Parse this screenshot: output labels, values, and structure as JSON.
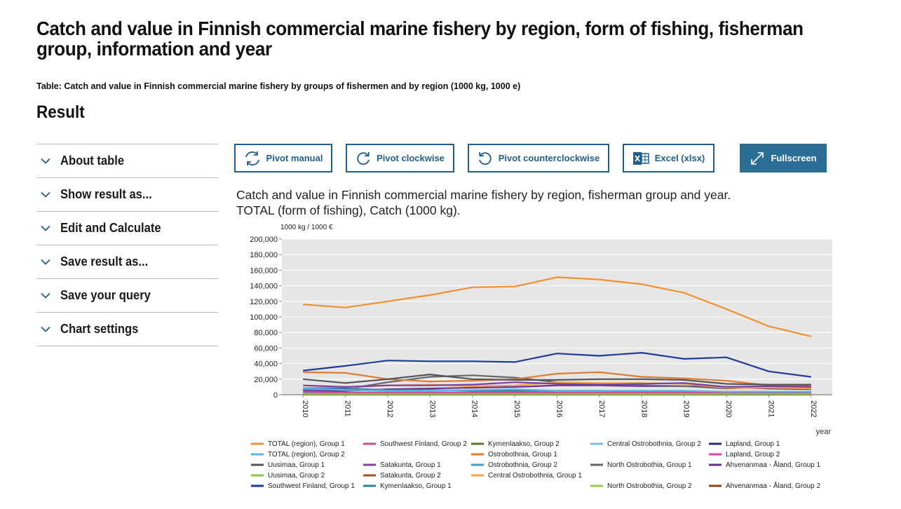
{
  "page": {
    "title": "Catch and value in Finnish commercial marine fishery by region, form of fishing, fisherman group, information and year",
    "subtitle": "Table: Catch and value in Finnish commercial marine fishery by groups of fishermen and by region (1000 kg, 1000 e)",
    "result_heading": "Result"
  },
  "sidebar": {
    "items": [
      {
        "label": "About table",
        "icon": "chevron-down-icon"
      },
      {
        "label": "Show result as...",
        "icon": "chevron-down-icon"
      },
      {
        "label": "Edit and Calculate",
        "icon": "chevron-down-icon"
      },
      {
        "label": "Save result as...",
        "icon": "chevron-down-icon"
      },
      {
        "label": "Save your query",
        "icon": "chevron-down-icon"
      },
      {
        "label": "Chart settings",
        "icon": "chevron-down-icon"
      }
    ]
  },
  "toolbar": {
    "pivot_manual": "Pivot manual",
    "pivot_clockwise": "Pivot clockwise",
    "pivot_counterclockwise": "Pivot counterclockwise",
    "excel": "Excel (xlsx)",
    "fullscreen": "Fullscreen"
  },
  "chart_title": {
    "line1": "Catch and value in Finnish commercial marine fishery by region, fisherman group and year.",
    "line2": "TOTAL (form of fishing), Catch (1000 kg)."
  },
  "colors": {
    "accent": "#1f5f8b",
    "primary_button": "#2a6e96",
    "plot_background": "#e6e6e6"
  },
  "chart_data": {
    "type": "line",
    "unit_label": "1000 kg / 1000 €",
    "xlabel": "year",
    "ylim": [
      0,
      200000
    ],
    "yticks": [
      0,
      20000,
      40000,
      60000,
      80000,
      100000,
      120000,
      140000,
      160000,
      180000,
      200000
    ],
    "ytick_labels": [
      "0",
      "20,000",
      "40,000",
      "60,000",
      "80,000",
      "100,000",
      "120,000",
      "140,000",
      "160,000",
      "180,000",
      "200,000"
    ],
    "categories": [
      "2010",
      "2011",
      "2012",
      "2013",
      "2014",
      "2015",
      "2016",
      "2017",
      "2018",
      "2019",
      "2020",
      "2021",
      "2022"
    ],
    "grid": true,
    "legend_position": "bottom",
    "series": [
      {
        "name": "TOTAL (region), Group 1",
        "color": "#f28e2b",
        "values": [
          116000,
          112000,
          120000,
          128000,
          138000,
          139000,
          151000,
          148000,
          142000,
          131000,
          110000,
          88000,
          75000
        ]
      },
      {
        "name": "TOTAL (region), Group 2",
        "color": "#58b6e8",
        "values": [
          8000,
          6000,
          5000,
          5000,
          6000,
          7000,
          5000,
          5000,
          5000,
          5000,
          4000,
          4000,
          4000
        ]
      },
      {
        "name": "Uusimaa, Group 1",
        "color": "#555555",
        "values": [
          20000,
          15000,
          20000,
          26000,
          20000,
          19000,
          19000,
          20000,
          20000,
          19000,
          14000,
          13000,
          13000
        ]
      },
      {
        "name": "Uusimaa, Group 2",
        "color": "#8bc34a",
        "values": [
          1000,
          1000,
          1000,
          1000,
          1000,
          1000,
          1000,
          1000,
          1000,
          1000,
          1000,
          1000,
          1000
        ]
      },
      {
        "name": "Southwest Finland, Group 1",
        "color": "#1f3c99",
        "values": [
          31000,
          37000,
          44000,
          43000,
          43000,
          42000,
          53000,
          50000,
          54000,
          46000,
          48000,
          30000,
          23000
        ]
      },
      {
        "name": "Southwest Finland, Group 2",
        "color": "#d6409f",
        "values": [
          4000,
          3000,
          3000,
          3000,
          3000,
          3000,
          3000,
          3000,
          3000,
          3000,
          3000,
          2000,
          2000
        ]
      },
      {
        "name": "Satakunta, Group 1",
        "color": "#7b3fa1",
        "values": [
          12000,
          10000,
          12000,
          12000,
          13000,
          16000,
          14000,
          13000,
          14000,
          15000,
          10000,
          11000,
          10000
        ]
      },
      {
        "name": "Satakunta, Group 2",
        "color": "#a0522d",
        "values": [
          1000,
          1000,
          1000,
          1000,
          1000,
          1000,
          1000,
          1000,
          1000,
          1000,
          1000,
          1000,
          1000
        ]
      },
      {
        "name": "Kymenlaakso, Group 1",
        "color": "#2f7fa3",
        "values": [
          8000,
          8000,
          6000,
          6000,
          5000,
          5000,
          5000,
          5000,
          4000,
          4000,
          3000,
          3000,
          3000
        ]
      },
      {
        "name": "Kymenlaakso, Group 2",
        "color": "#4d7a1f",
        "values": [
          500,
          500,
          500,
          500,
          500,
          500,
          500,
          500,
          500,
          500,
          500,
          500,
          500
        ]
      },
      {
        "name": "Ostrobothnia, Group 1",
        "color": "#e07b2e",
        "values": [
          29000,
          28000,
          20000,
          17000,
          18000,
          20000,
          27000,
          29000,
          23000,
          21000,
          18000,
          12000,
          11000
        ]
      },
      {
        "name": "Ostrobothnia, Group 2",
        "color": "#3aa0c8",
        "values": [
          2000,
          2000,
          2000,
          2000,
          2000,
          2000,
          2000,
          2000,
          2000,
          2000,
          2000,
          2000,
          2000
        ]
      },
      {
        "name": "Central Ostrobothnia, Group 1",
        "color": "#f5a04a",
        "values": [
          9000,
          9000,
          12000,
          13000,
          11000,
          12000,
          16000,
          15000,
          15000,
          14000,
          9000,
          9000,
          8000
        ]
      },
      {
        "name": "Central Ostrobothnia, Group 2",
        "color": "#6cc4ea",
        "values": [
          500,
          500,
          500,
          500,
          500,
          500,
          500,
          500,
          500,
          500,
          500,
          500,
          500
        ]
      },
      {
        "name": "North Ostrobothia, Group 1",
        "color": "#666666",
        "values": [
          7000,
          7000,
          16000,
          23000,
          25000,
          22000,
          16000,
          14000,
          12000,
          11000,
          8000,
          10000,
          12000
        ]
      },
      {
        "name": "North Ostrobothia, Group 2",
        "color": "#9ccc4a",
        "values": [
          500,
          500,
          500,
          500,
          500,
          500,
          500,
          500,
          500,
          500,
          500,
          500,
          500
        ]
      },
      {
        "name": "Lapland, Group 1",
        "color": "#1a2f8a",
        "values": [
          1000,
          1000,
          1000,
          1000,
          1000,
          1000,
          1000,
          1000,
          1000,
          1000,
          1000,
          1000,
          1000
        ]
      },
      {
        "name": "Lapland, Group 2",
        "color": "#e040a8",
        "values": [
          200,
          200,
          200,
          200,
          200,
          200,
          200,
          200,
          200,
          200,
          200,
          200,
          200
        ]
      },
      {
        "name": "Ahvenanmaa - Åland, Group 1",
        "color": "#6a2f8f",
        "values": [
          5000,
          5000,
          7000,
          8000,
          9000,
          10000,
          12000,
          12000,
          11000,
          11000,
          10000,
          8000,
          7000
        ]
      },
      {
        "name": "Ahvenanmaa - Åland, Group 2",
        "color": "#8b4513",
        "values": [
          300,
          300,
          300,
          300,
          300,
          300,
          300,
          300,
          300,
          300,
          300,
          300,
          300
        ]
      }
    ],
    "legend_entries": [
      {
        "text": "TOTAL (region), Group 1",
        "color": "#f28e2b",
        "col": 0,
        "row": 0
      },
      {
        "text": "TOTAL (region), Group 2",
        "color": "#58b6e8",
        "col": 0,
        "row": 1
      },
      {
        "text": "Uusimaa, Group 1",
        "color": "#555555",
        "col": 0,
        "row": 2
      },
      {
        "text": "Uusimaa, Group 2",
        "color": "#8bc34a",
        "col": 0,
        "row": 3
      },
      {
        "text": "Southwest Finland, Group 1",
        "color": "#1f3c99",
        "col": 0,
        "row": 4
      },
      {
        "text": "Southwest Finland, Group 2",
        "color": "#d6409f",
        "col": 1,
        "row": 0
      },
      {
        "text": "Satakunta, Group 1",
        "color": "#7b3fa1",
        "col": 1,
        "row": 2
      },
      {
        "text": "Satakunta, Group 2",
        "color": "#a0522d",
        "col": 1,
        "row": 3
      },
      {
        "text": "Kymenlaakso, Group 1",
        "color": "#2f7fa3",
        "col": 1,
        "row": 4
      },
      {
        "text": "Kymenlaakso, Group 2",
        "color": "#4d7a1f",
        "col": 2,
        "row": 0
      },
      {
        "text": "Ostrobothnia, Group 1",
        "color": "#e07b2e",
        "col": 2,
        "row": 1
      },
      {
        "text": "Ostrobothnia, Group 2",
        "color": "#3aa0c8",
        "col": 2,
        "row": 2
      },
      {
        "text": "Central Ostrobothnia, Group 1",
        "color": "#f5a04a",
        "col": 2,
        "row": 3
      },
      {
        "text": "Central Ostrobothnia, Group 2",
        "color": "#6cc4ea",
        "col": 3,
        "row": 0
      },
      {
        "text": "North Ostrobothia, Group 1",
        "color": "#666666",
        "col": 3,
        "row": 2
      },
      {
        "text": "North Ostrobothia, Group 2",
        "color": "#9ccc4a",
        "col": 3,
        "row": 4
      },
      {
        "text": "Lapland, Group 1",
        "color": "#1a2f8a",
        "col": 4,
        "row": 0
      },
      {
        "text": "Lapland, Group 2",
        "color": "#e040a8",
        "col": 4,
        "row": 1
      },
      {
        "text": "Ahvenanmaa - Åland, Group 1",
        "color": "#6a2f8f",
        "col": 4,
        "row": 2
      },
      {
        "text": "Ahvenanmaa - Åland, Group 2",
        "color": "#8b4513",
        "col": 4,
        "row": 4
      }
    ]
  }
}
